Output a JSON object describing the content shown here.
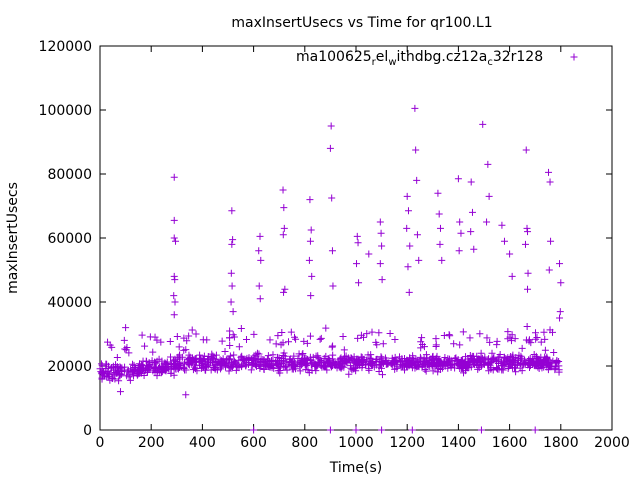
{
  "chart_data": {
    "type": "scatter",
    "title": "maxInsertUsecs vs Time for qr100.L1",
    "xlabel": "Time(s)",
    "ylabel": "maxInsertUsecs",
    "xlim": [
      0,
      2000
    ],
    "ylim": [
      0,
      120000
    ],
    "xticks": [
      "0",
      "200",
      "400",
      "600",
      "800",
      "1000",
      "1200",
      "1400",
      "1600",
      "1800",
      "2000"
    ],
    "yticks": [
      "0",
      "20000",
      "40000",
      "60000",
      "80000",
      "100000",
      "120000"
    ],
    "grid": false,
    "legend_position": "top-right",
    "series": [
      {
        "name": "ma100625_rel_withdbg.cz12a_c32r128",
        "legend_text": "ma100625",
        "legend_sub_1": "r",
        "legend_mid_1": "el",
        "legend_sub_2": "w",
        "legend_mid_2": "ithdbg.cz12a",
        "legend_sub_3": "c",
        "legend_tail": "32r128",
        "marker": "plus",
        "color": "#9400d3",
        "base_band": {
          "x_start": 0,
          "x_end": 1800,
          "low": 14000,
          "high": 30000,
          "typical": 21000
        },
        "outliers": [
          {
            "x": 290,
            "y": 79000
          },
          {
            "x": 290,
            "y": 65500
          },
          {
            "x": 290,
            "y": 60000
          },
          {
            "x": 295,
            "y": 59000
          },
          {
            "x": 290,
            "y": 48000
          },
          {
            "x": 292,
            "y": 47000
          },
          {
            "x": 288,
            "y": 42000
          },
          {
            "x": 293,
            "y": 40000
          },
          {
            "x": 290,
            "y": 36000
          },
          {
            "x": 515,
            "y": 68500
          },
          {
            "x": 518,
            "y": 59500
          },
          {
            "x": 515,
            "y": 58000
          },
          {
            "x": 513,
            "y": 49000
          },
          {
            "x": 516,
            "y": 45000
          },
          {
            "x": 512,
            "y": 40000
          },
          {
            "x": 520,
            "y": 37000
          },
          {
            "x": 625,
            "y": 60500
          },
          {
            "x": 620,
            "y": 56000
          },
          {
            "x": 628,
            "y": 53000
          },
          {
            "x": 622,
            "y": 45000
          },
          {
            "x": 626,
            "y": 41000
          },
          {
            "x": 715,
            "y": 75000
          },
          {
            "x": 718,
            "y": 69500
          },
          {
            "x": 720,
            "y": 63000
          },
          {
            "x": 716,
            "y": 61000
          },
          {
            "x": 722,
            "y": 44000
          },
          {
            "x": 717,
            "y": 43000
          },
          {
            "x": 820,
            "y": 72000
          },
          {
            "x": 825,
            "y": 62500
          },
          {
            "x": 822,
            "y": 59000
          },
          {
            "x": 818,
            "y": 53000
          },
          {
            "x": 827,
            "y": 48000
          },
          {
            "x": 823,
            "y": 42000
          },
          {
            "x": 903,
            "y": 95000
          },
          {
            "x": 900,
            "y": 88000
          },
          {
            "x": 905,
            "y": 72500
          },
          {
            "x": 908,
            "y": 56000
          },
          {
            "x": 910,
            "y": 45000
          },
          {
            "x": 1005,
            "y": 60500
          },
          {
            "x": 1008,
            "y": 58500
          },
          {
            "x": 1002,
            "y": 52000
          },
          {
            "x": 1010,
            "y": 46000
          },
          {
            "x": 1050,
            "y": 55000
          },
          {
            "x": 1095,
            "y": 65000
          },
          {
            "x": 1098,
            "y": 61500
          },
          {
            "x": 1100,
            "y": 57500
          },
          {
            "x": 1095,
            "y": 52000
          },
          {
            "x": 1102,
            "y": 47000
          },
          {
            "x": 1200,
            "y": 73000
          },
          {
            "x": 1205,
            "y": 68500
          },
          {
            "x": 1198,
            "y": 63000
          },
          {
            "x": 1210,
            "y": 57500
          },
          {
            "x": 1203,
            "y": 51000
          },
          {
            "x": 1208,
            "y": 43000
          },
          {
            "x": 1230,
            "y": 100500
          },
          {
            "x": 1233,
            "y": 87500
          },
          {
            "x": 1237,
            "y": 78000
          },
          {
            "x": 1240,
            "y": 61000
          },
          {
            "x": 1245,
            "y": 53000
          },
          {
            "x": 1320,
            "y": 74000
          },
          {
            "x": 1325,
            "y": 67500
          },
          {
            "x": 1330,
            "y": 63000
          },
          {
            "x": 1328,
            "y": 58000
          },
          {
            "x": 1335,
            "y": 53000
          },
          {
            "x": 1400,
            "y": 78500
          },
          {
            "x": 1405,
            "y": 65000
          },
          {
            "x": 1410,
            "y": 61500
          },
          {
            "x": 1403,
            "y": 56000
          },
          {
            "x": 1450,
            "y": 77500
          },
          {
            "x": 1455,
            "y": 68000
          },
          {
            "x": 1448,
            "y": 62000
          },
          {
            "x": 1460,
            "y": 56500
          },
          {
            "x": 1495,
            "y": 95500
          },
          {
            "x": 1515,
            "y": 83000
          },
          {
            "x": 1520,
            "y": 73000
          },
          {
            "x": 1510,
            "y": 65000
          },
          {
            "x": 1570,
            "y": 64000
          },
          {
            "x": 1580,
            "y": 59000
          },
          {
            "x": 1600,
            "y": 55000
          },
          {
            "x": 1610,
            "y": 48000
          },
          {
            "x": 1665,
            "y": 87500
          },
          {
            "x": 1668,
            "y": 63000
          },
          {
            "x": 1670,
            "y": 62000
          },
          {
            "x": 1662,
            "y": 58000
          },
          {
            "x": 1672,
            "y": 49000
          },
          {
            "x": 1670,
            "y": 44000
          },
          {
            "x": 1752,
            "y": 80500
          },
          {
            "x": 1758,
            "y": 77500
          },
          {
            "x": 1760,
            "y": 59000
          },
          {
            "x": 1755,
            "y": 50000
          },
          {
            "x": 1795,
            "y": 52000
          },
          {
            "x": 1800,
            "y": 46000
          },
          {
            "x": 1798,
            "y": 37000
          },
          {
            "x": 1795,
            "y": 35000
          },
          {
            "x": 100,
            "y": 32000
          },
          {
            "x": 95,
            "y": 28000
          },
          {
            "x": 1220,
            "y": 0
          },
          {
            "x": 1100,
            "y": 0
          },
          {
            "x": 1490,
            "y": 0
          },
          {
            "x": 600,
            "y": 0
          },
          {
            "x": 900,
            "y": 0
          },
          {
            "x": 1000,
            "y": 0
          },
          {
            "x": 1700,
            "y": 0
          },
          {
            "x": 335,
            "y": 11000
          },
          {
            "x": 80,
            "y": 12000
          }
        ]
      }
    ]
  }
}
